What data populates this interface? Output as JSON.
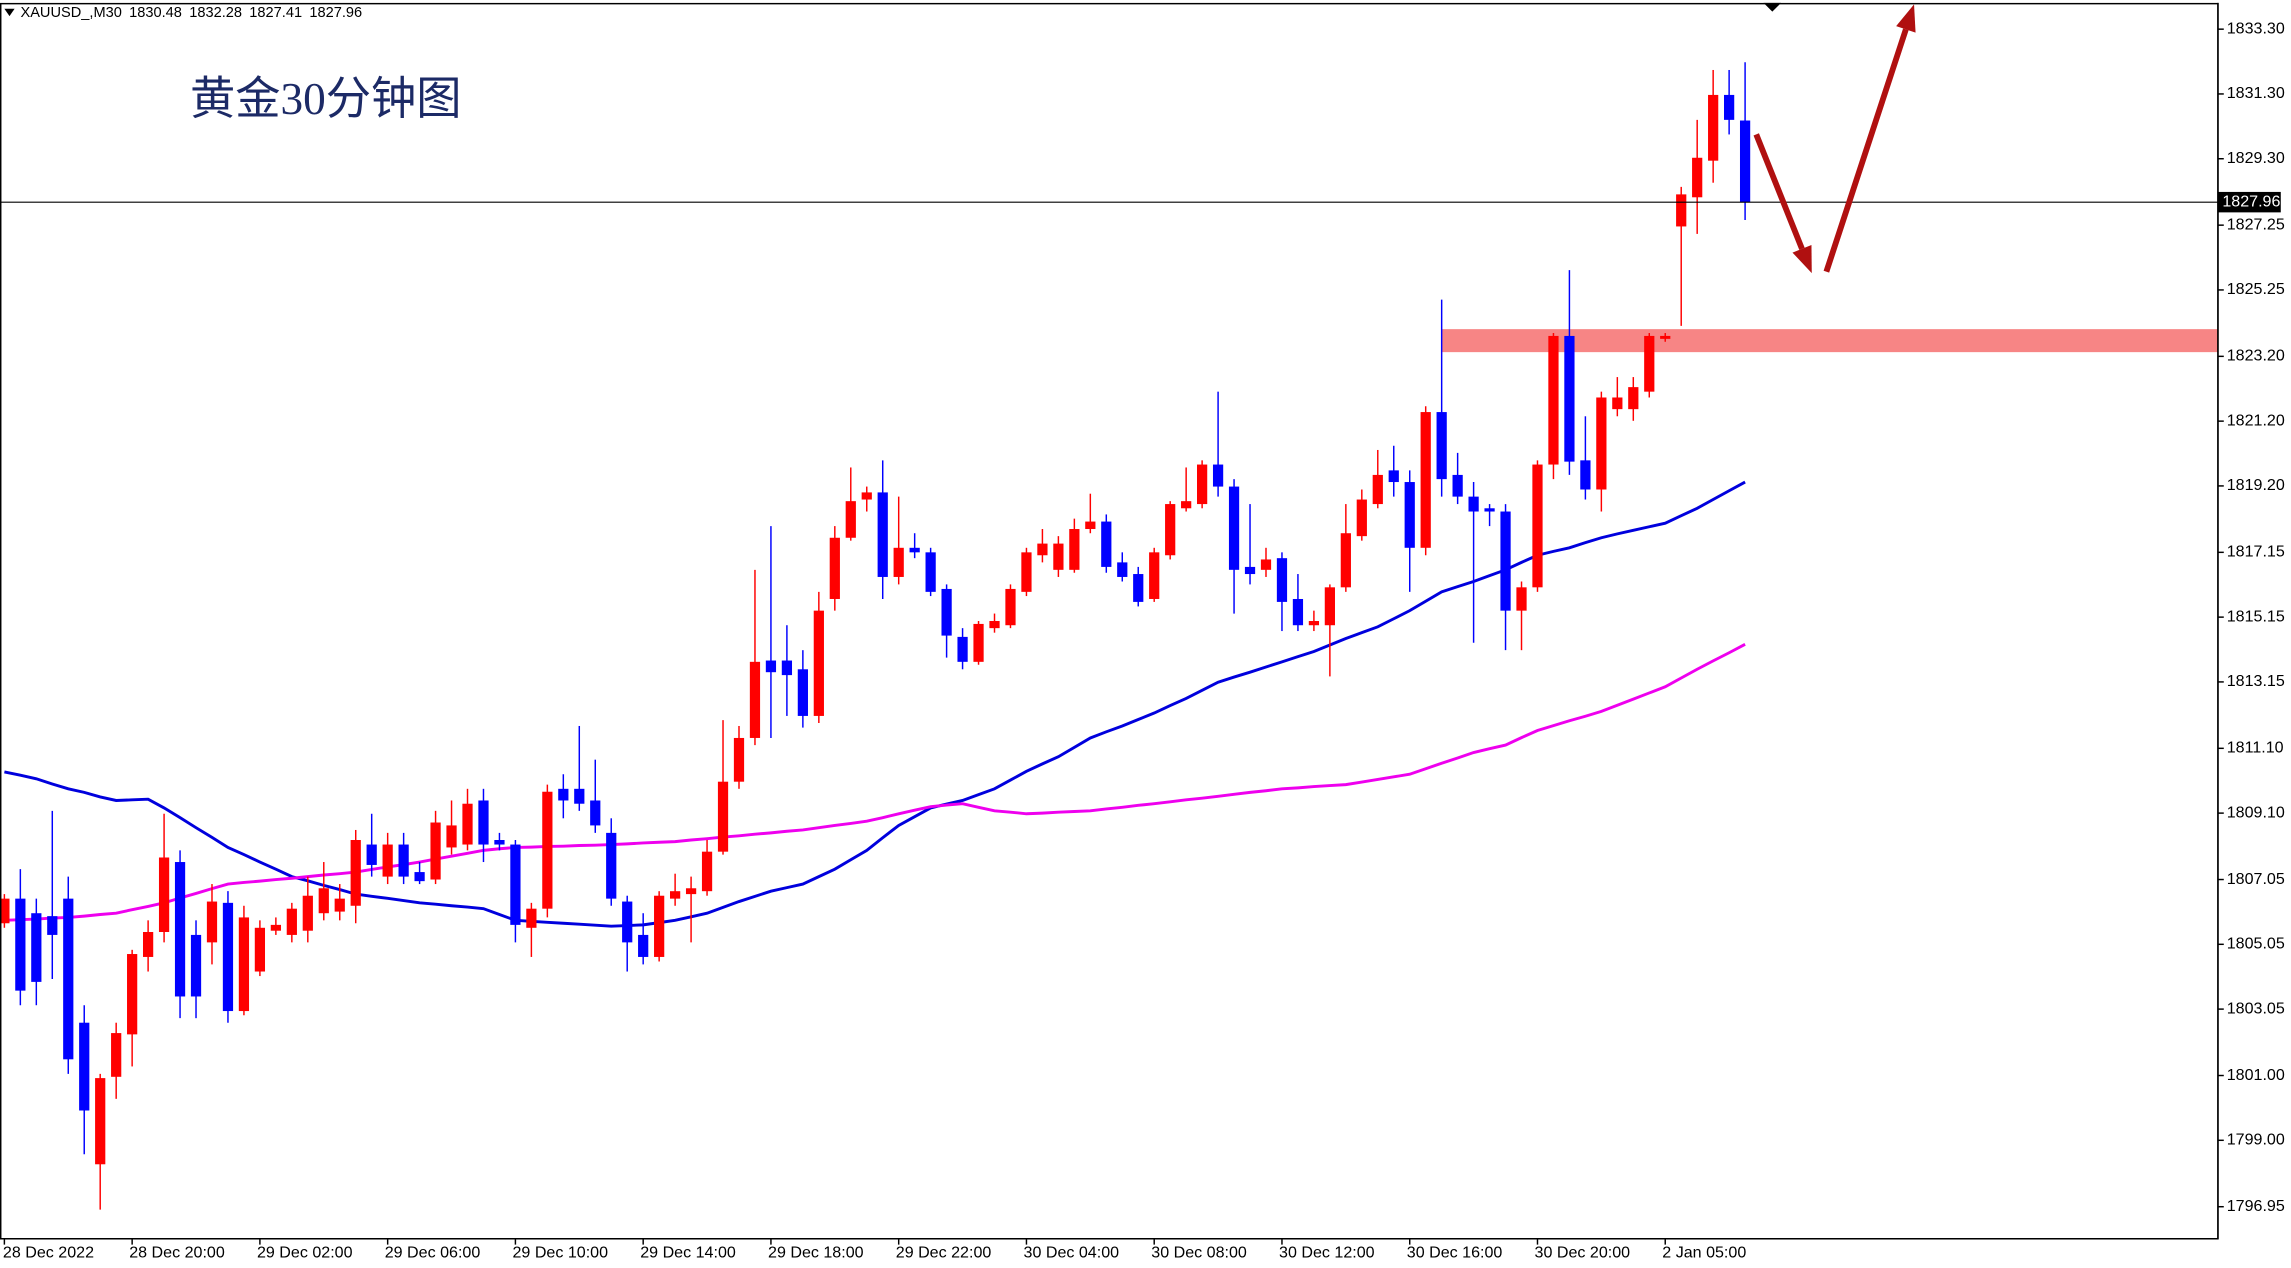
{
  "chart_data": {
    "type": "candlestick",
    "title": "黄金30分钟图",
    "symbol": "XAUUSD_,M30",
    "categories": [
      "28 Dec 2022",
      null,
      null,
      null,
      null,
      null,
      null,
      null,
      "28 Dec 20:00",
      null,
      null,
      null,
      null,
      null,
      null,
      null,
      "29 Dec 02:00",
      null,
      null,
      null,
      null,
      null,
      null,
      null,
      "29 Dec 06:00",
      null,
      null,
      null,
      null,
      null,
      null,
      null,
      "29 Dec 10:00",
      null,
      null,
      null,
      null,
      null,
      null,
      null,
      "29 Dec 14:00",
      null,
      null,
      null,
      null,
      null,
      null,
      null,
      "29 Dec 18:00",
      null,
      null,
      null,
      null,
      null,
      null,
      null,
      "29 Dec 22:00",
      null,
      null,
      null,
      null,
      null,
      null,
      null,
      "30 Dec 04:00",
      null,
      null,
      null,
      null,
      null,
      null,
      null,
      "30 Dec 08:00",
      null,
      null,
      null,
      null,
      null,
      null,
      null,
      "30 Dec 12:00",
      null,
      null,
      null,
      null,
      null,
      null,
      null,
      "30 Dec 16:00",
      null,
      null,
      null,
      null,
      null,
      null,
      null,
      "30 Dec 20:00",
      null,
      null,
      null,
      null,
      null,
      null,
      null,
      "2 Jan 05:00",
      null,
      null,
      null,
      null,
      null
    ],
    "open": [
      1805.7,
      1806.46,
      1806.01,
      1805.92,
      1806.46,
      1802.63,
      1798.26,
      1800.96,
      1802.27,
      1804.66,
      1805.43,
      1807.59,
      1805.34,
      1805.11,
      1806.33,
      1802.99,
      1804.21,
      1805.47,
      1805.34,
      1805.47,
      1806.01,
      1806.06,
      1806.24,
      1808.13,
      1807.14,
      1808.13,
      1807.28,
      1807.05,
      1808.04,
      1808.13,
      1809.49,
      1808.27,
      1808.13,
      1805.56,
      1806.15,
      1809.85,
      1809.85,
      1809.49,
      1808.49,
      1806.37,
      1805.34,
      1804.66,
      1806.46,
      1806.6,
      1806.69,
      1807.91,
      1810.07,
      1811.42,
      1813.81,
      1813.81,
      1813.54,
      1812.1,
      1815.71,
      1817.6,
      1818.78,
      1819.0,
      1816.39,
      1817.29,
      1817.15,
      1816.02,
      1814.54,
      1813.77,
      1814.81,
      1814.9,
      1815.93,
      1817.06,
      1816.61,
      1816.61,
      1817.87,
      1818.1,
      1816.84,
      1816.48,
      1815.71,
      1817.06,
      1818.51,
      1818.64,
      1819.86,
      1819.18,
      1816.7,
      1816.61,
      1816.97,
      1815.71,
      1814.9,
      1814.9,
      1816.07,
      1817.65,
      1818.64,
      1819.68,
      1819.32,
      1817.29,
      1821.48,
      1819.54,
      1818.87,
      1818.51,
      1818.41,
      1815.35,
      1816.07,
      1819.86,
      1823.83,
      1819.99,
      1819.09,
      1821.57,
      1821.57,
      1822.11,
      1823.74,
      1827.21,
      1828.11,
      1829.24,
      1831.27,
      1830.48
    ],
    "high": [
      1806.6,
      1807.37,
      1806.46,
      1809.17,
      1807.14,
      1803.17,
      1801.05,
      1802.63,
      1804.88,
      1805.79,
      1809.08,
      1807.95,
      1805.79,
      1806.91,
      1806.69,
      1806.24,
      1805.79,
      1805.88,
      1806.33,
      1807.14,
      1807.59,
      1806.91,
      1808.58,
      1809.08,
      1808.49,
      1808.49,
      1807.59,
      1809.17,
      1809.49,
      1809.85,
      1809.85,
      1808.49,
      1808.27,
      1806.33,
      1809.98,
      1810.3,
      1811.79,
      1810.75,
      1808.94,
      1806.55,
      1806.01,
      1806.69,
      1807.23,
      1807.14,
      1808.27,
      1811.97,
      1811.79,
      1816.61,
      1817.96,
      1814.9,
      1814.13,
      1815.93,
      1817.96,
      1819.77,
      1819.18,
      1819.99,
      1818.87,
      1817.74,
      1817.29,
      1816.16,
      1814.81,
      1815.03,
      1815.26,
      1816.16,
      1817.29,
      1817.87,
      1817.65,
      1818.19,
      1818.96,
      1818.32,
      1817.15,
      1816.7,
      1817.29,
      1818.73,
      1819.77,
      1819.99,
      1822.11,
      1819.41,
      1818.64,
      1817.29,
      1817.15,
      1816.48,
      1815.35,
      1816.16,
      1818.64,
      1819.09,
      1820.31,
      1820.44,
      1819.68,
      1821.66,
      1824.95,
      1820.22,
      1819.32,
      1818.64,
      1818.64,
      1816.25,
      1819.99,
      1823.92,
      1825.86,
      1821.35,
      1822.11,
      1822.56,
      1822.56,
      1823.92,
      1823.92,
      1828.43,
      1830.5,
      1832.04,
      1832.04,
      1832.28
    ],
    "low": [
      1805.56,
      1803.17,
      1803.17,
      1803.98,
      1801.05,
      1798.57,
      1796.86,
      1800.28,
      1801.28,
      1804.21,
      1805.11,
      1802.77,
      1802.77,
      1804.43,
      1802.63,
      1802.86,
      1804.07,
      1805.34,
      1805.11,
      1805.11,
      1805.79,
      1805.79,
      1805.7,
      1807.14,
      1806.91,
      1806.91,
      1806.91,
      1806.91,
      1807.82,
      1807.95,
      1807.59,
      1807.95,
      1805.11,
      1804.66,
      1805.88,
      1808.94,
      1809.17,
      1808.49,
      1806.24,
      1804.21,
      1804.43,
      1804.52,
      1806.24,
      1805.11,
      1806.55,
      1807.82,
      1809.85,
      1811.2,
      1811.42,
      1812.1,
      1811.74,
      1811.88,
      1815.35,
      1817.51,
      1818.41,
      1815.71,
      1816.16,
      1816.97,
      1815.8,
      1813.9,
      1813.54,
      1813.68,
      1814.67,
      1814.81,
      1815.8,
      1816.84,
      1816.39,
      1816.52,
      1817.74,
      1816.52,
      1816.25,
      1815.48,
      1815.62,
      1816.93,
      1818.41,
      1818.51,
      1818.87,
      1815.26,
      1816.16,
      1816.39,
      1814.72,
      1814.72,
      1814.72,
      1813.32,
      1815.93,
      1817.51,
      1818.51,
      1818.87,
      1815.93,
      1817.06,
      1818.87,
      1818.64,
      1814.36,
      1817.96,
      1814.13,
      1814.13,
      1815.93,
      1819.41,
      1819.54,
      1818.78,
      1818.41,
      1821.35,
      1821.21,
      1821.93,
      1823.65,
      1824.14,
      1826.98,
      1828.56,
      1830.05,
      1827.41
    ],
    "close": [
      1806.46,
      1803.62,
      1803.89,
      1805.34,
      1801.5,
      1799.92,
      1800.92,
      1802.31,
      1804.75,
      1805.43,
      1807.73,
      1803.44,
      1803.44,
      1806.37,
      1802.99,
      1805.88,
      1805.56,
      1805.65,
      1806.15,
      1806.55,
      1806.78,
      1806.46,
      1808.27,
      1807.5,
      1808.13,
      1807.14,
      1807.0,
      1808.81,
      1808.72,
      1809.39,
      1808.13,
      1808.13,
      1805.65,
      1806.15,
      1809.76,
      1809.49,
      1809.39,
      1808.72,
      1806.46,
      1805.11,
      1804.66,
      1806.55,
      1806.69,
      1806.78,
      1807.91,
      1810.07,
      1811.42,
      1813.77,
      1813.45,
      1813.36,
      1812.1,
      1815.35,
      1817.6,
      1818.73,
      1819.0,
      1816.39,
      1817.29,
      1817.15,
      1815.93,
      1814.58,
      1813.77,
      1814.94,
      1815.03,
      1816.02,
      1817.15,
      1817.42,
      1817.42,
      1817.87,
      1818.1,
      1816.7,
      1816.39,
      1815.62,
      1817.15,
      1818.64,
      1818.73,
      1819.86,
      1819.18,
      1816.61,
      1816.48,
      1816.93,
      1815.62,
      1814.9,
      1815.03,
      1816.07,
      1817.74,
      1818.78,
      1819.54,
      1819.32,
      1817.29,
      1821.48,
      1819.41,
      1818.87,
      1818.41,
      1818.41,
      1815.35,
      1816.07,
      1819.86,
      1823.83,
      1819.95,
      1819.09,
      1821.93,
      1821.93,
      1822.25,
      1823.83,
      1823.83,
      1828.2,
      1829.33,
      1831.27,
      1830.5,
      1827.96
    ],
    "up_color": "#ff0000",
    "down_color": "#0000ff",
    "series": [
      {
        "color": "#0000dd",
        "values": [
          1810.37,
          1810.27,
          1810.16,
          1810.0,
          1809.85,
          1809.74,
          1809.6,
          1809.49,
          1809.51,
          1809.53,
          1809.26,
          1808.96,
          1808.65,
          1808.35,
          1808.04,
          1807.82,
          1807.59,
          1807.37,
          1807.14,
          1807.01,
          1806.87,
          1806.74,
          1806.6,
          1806.53,
          1806.47,
          1806.4,
          1806.33,
          1806.29,
          1806.24,
          1806.2,
          1806.15,
          1805.97,
          1805.79,
          1805.76,
          1805.73,
          1805.7,
          1805.67,
          1805.64,
          1805.61,
          1805.63,
          1805.65,
          1805.72,
          1805.79,
          1805.9,
          1806.01,
          1806.19,
          1806.37,
          1806.53,
          1806.69,
          1806.8,
          1806.91,
          1807.14,
          1807.37,
          1807.66,
          1807.95,
          1808.34,
          1808.72,
          1808.99,
          1809.26,
          1809.38,
          1809.49,
          1809.67,
          1809.85,
          1810.12,
          1810.39,
          1810.62,
          1810.84,
          1811.13,
          1811.42,
          1811.61,
          1811.79,
          1811.99,
          1812.19,
          1812.42,
          1812.64,
          1812.89,
          1813.14,
          1813.3,
          1813.45,
          1813.61,
          1813.77,
          1813.93,
          1814.09,
          1814.29,
          1814.49,
          1814.67,
          1814.85,
          1815.1,
          1815.35,
          1815.64,
          1815.93,
          1816.09,
          1816.25,
          1816.43,
          1816.61,
          1816.84,
          1817.06,
          1817.18,
          1817.29,
          1817.45,
          1817.6,
          1817.72,
          1817.83,
          1817.94,
          1818.05,
          1818.28,
          1818.51,
          1818.78,
          1819.05,
          1819.32
        ]
      },
      {
        "color": "#ee00ee",
        "values": [
          1805.79,
          1805.81,
          1805.83,
          1805.86,
          1805.88,
          1805.92,
          1805.97,
          1806.01,
          1806.12,
          1806.22,
          1806.33,
          1806.48,
          1806.62,
          1806.77,
          1806.91,
          1806.96,
          1807.0,
          1807.05,
          1807.09,
          1807.14,
          1807.19,
          1807.23,
          1807.28,
          1807.36,
          1807.44,
          1807.51,
          1807.59,
          1807.68,
          1807.77,
          1807.86,
          1807.95,
          1808.0,
          1808.04,
          1808.05,
          1808.07,
          1808.08,
          1808.1,
          1808.11,
          1808.13,
          1808.15,
          1808.18,
          1808.2,
          1808.22,
          1808.27,
          1808.31,
          1808.36,
          1808.4,
          1808.45,
          1808.49,
          1808.54,
          1808.58,
          1808.65,
          1808.72,
          1808.78,
          1808.85,
          1808.96,
          1809.08,
          1809.19,
          1809.3,
          1809.35,
          1809.39,
          1809.28,
          1809.17,
          1809.13,
          1809.08,
          1809.1,
          1809.13,
          1809.15,
          1809.17,
          1809.23,
          1809.28,
          1809.34,
          1809.39,
          1809.45,
          1809.51,
          1809.56,
          1809.62,
          1809.68,
          1809.74,
          1809.79,
          1809.85,
          1809.88,
          1809.92,
          1809.95,
          1809.98,
          1810.06,
          1810.14,
          1810.22,
          1810.3,
          1810.47,
          1810.64,
          1810.8,
          1810.97,
          1811.09,
          1811.2,
          1811.43,
          1811.65,
          1811.8,
          1811.95,
          1812.09,
          1812.24,
          1812.43,
          1812.62,
          1812.81,
          1813.0,
          1813.27,
          1813.54,
          1813.8,
          1814.05,
          1814.31
        ]
      }
    ],
    "zone": [
      1823.33,
      1824.04
    ],
    "zone_color": "#f78585",
    "ylim": [
      1795.96,
      1834.11
    ],
    "yticks": [
      {
        "value": 1833.3,
        "label": "1833.30"
      },
      {
        "value": 1831.3,
        "label": "1831.30"
      },
      {
        "value": 1829.3,
        "label": "1829.30"
      },
      {
        "value": 1827.25,
        "label": "1827.25"
      },
      {
        "value": 1825.25,
        "label": "1825.25"
      },
      {
        "value": 1823.2,
        "label": "1823.20"
      },
      {
        "value": 1821.2,
        "label": "1821.20"
      },
      {
        "value": 1819.2,
        "label": "1819.20"
      },
      {
        "value": 1817.15,
        "label": "1817.15"
      },
      {
        "value": 1815.15,
        "label": "1815.15"
      },
      {
        "value": 1813.15,
        "label": "1813.15"
      },
      {
        "value": 1811.1,
        "label": "1811.10"
      },
      {
        "value": 1809.1,
        "label": "1809.10"
      },
      {
        "value": 1807.05,
        "label": "1807.05"
      },
      {
        "value": 1805.05,
        "label": "1805.05"
      },
      {
        "value": 1803.05,
        "label": "1803.05"
      },
      {
        "value": 1801,
        "label": "1801.00"
      },
      {
        "value": 1799,
        "label": "1799.00"
      },
      {
        "value": 1796.95,
        "label": "1796.95"
      }
    ]
  }
}
